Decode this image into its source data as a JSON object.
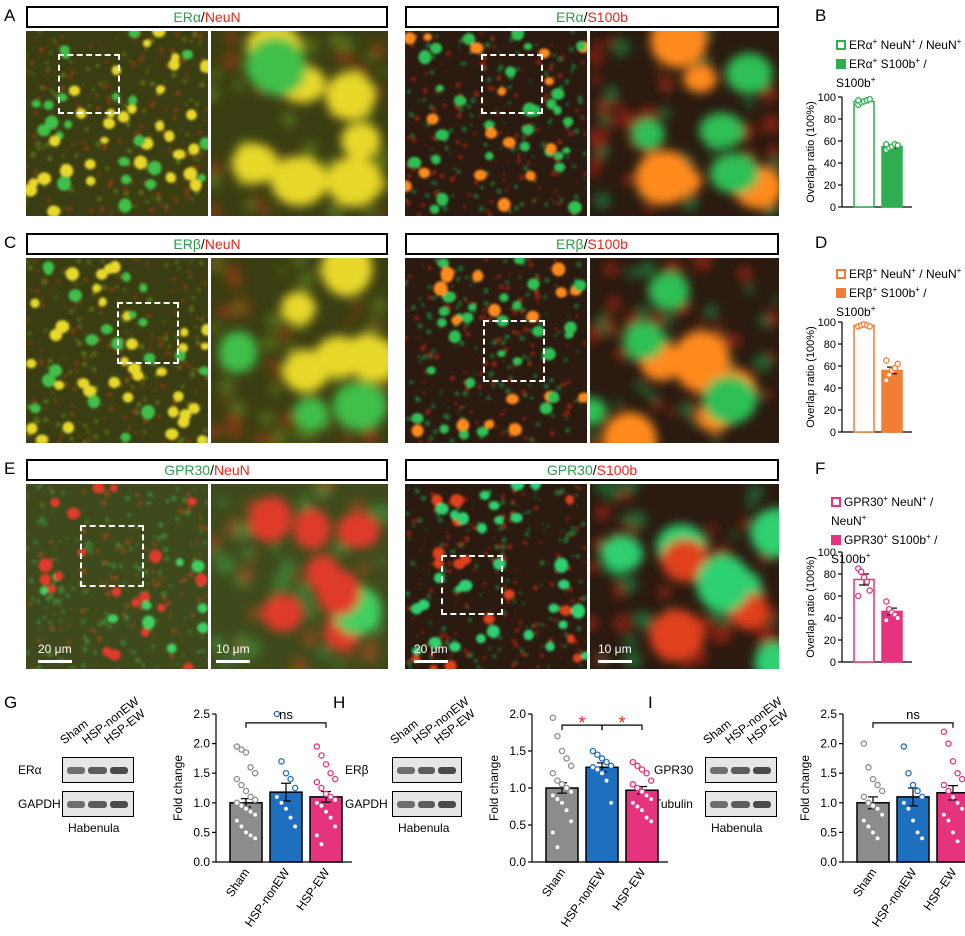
{
  "panels": {
    "A": "A",
    "B": "B",
    "C": "C",
    "D": "D",
    "E": "E",
    "F": "F",
    "G": "G",
    "H": "H",
    "I": "I"
  },
  "rows": [
    {
      "left_title": {
        "marker": "ERα",
        "sep": "/",
        "cell": "NeuN"
      },
      "right_title": {
        "marker": "ERα",
        "sep": "/",
        "cell": "S100b"
      },
      "legend": [
        {
          "text_main": "ERα",
          "sup1": "+",
          "mid": " NeuN",
          "sup2": "+",
          "tail": " / NeuN",
          "sup3": "+",
          "style": "open"
        },
        {
          "text_main": "ERα",
          "sup1": "+",
          "mid": " S100b",
          "sup2": "+",
          "tail": " / S100b",
          "sup3": "+",
          "style": "filled"
        }
      ],
      "color": "#2fae4f",
      "palette": "green"
    },
    {
      "left_title": {
        "marker": "ERβ",
        "sep": "/",
        "cell": "NeuN"
      },
      "right_title": {
        "marker": "ERβ",
        "sep": "/",
        "cell": "S100b"
      },
      "legend": [
        {
          "text_main": "ERβ",
          "sup1": "+",
          "mid": " NeuN",
          "sup2": "+",
          "tail": " / NeuN",
          "sup3": "+",
          "style": "open"
        },
        {
          "text_main": "ERβ",
          "sup1": "+",
          "mid": " S100b",
          "sup2": "+",
          "tail": " / S100b",
          "sup3": "+",
          "style": "filled"
        }
      ],
      "color": "#f07f35",
      "palette": "orange"
    },
    {
      "left_title": {
        "marker": "GPR30",
        "sep": "/",
        "cell": "NeuN"
      },
      "right_title": {
        "marker": "GPR30",
        "sep": "/",
        "cell": "S100b"
      },
      "legend": [
        {
          "text_main": "GPR30",
          "sup1": "+",
          "mid": " NeuN",
          "sup2": "+",
          "tail": " / NeuN",
          "sup3": "+",
          "style": "open"
        },
        {
          "text_main": "GPR30",
          "sup1": "+",
          "mid": " S100b",
          "sup2": "+",
          "tail": " / S100b",
          "sup3": "+",
          "style": "filled"
        }
      ],
      "color": "#e6337e",
      "palette": "pink"
    }
  ],
  "scalebars": {
    "overview": "20 μm",
    "zoom": "10 μm"
  },
  "western": [
    {
      "lanes": [
        "Sham",
        "HSP-nonEW",
        "HSP-EW"
      ],
      "target": "ERα",
      "loading": "GAPDH",
      "region": "Habenula"
    },
    {
      "lanes": [
        "Sham",
        "HSP-nonEW",
        "HSP-EW"
      ],
      "target": "ERβ",
      "loading": "GAPDH",
      "region": "Habenula"
    },
    {
      "lanes": [
        "Sham",
        "HSP-nonEW",
        "HSP-EW"
      ],
      "target": "GPR30",
      "loading": "Tubulin",
      "region": "Habenula"
    }
  ],
  "colors": {
    "sham": "#8c8c8c",
    "nonew": "#1f6fbf",
    "ew": "#e6337e",
    "star": "#e8251a"
  },
  "chart_data": [
    {
      "panel": "B",
      "type": "bar",
      "ylabel": "Overlap ratio (100%)",
      "ylim": [
        0,
        100
      ],
      "yticks": [
        0,
        20,
        40,
        60,
        80,
        100
      ],
      "bars": [
        {
          "mean": 96,
          "sem": 1.2,
          "points": [
            93,
            95,
            96,
            97,
            98,
            97
          ]
        },
        {
          "mean": 55,
          "sem": 1.5,
          "points": [
            52,
            54,
            55,
            57,
            56,
            57
          ]
        }
      ]
    },
    {
      "panel": "D",
      "type": "bar",
      "ylabel": "Overlap ratio (100%)",
      "ylim": [
        0,
        100
      ],
      "yticks": [
        0,
        20,
        40,
        60,
        80,
        100
      ],
      "bars": [
        {
          "mean": 97,
          "sem": 0.8,
          "points": [
            96,
            97,
            98,
            97,
            96
          ]
        },
        {
          "mean": 56,
          "sem": 3.0,
          "points": [
            47,
            52,
            56,
            58,
            62,
            65
          ]
        }
      ]
    },
    {
      "panel": "F",
      "type": "bar",
      "ylabel": "Overlap ratio (100%)",
      "ylim": [
        0,
        100
      ],
      "yticks": [
        0,
        20,
        40,
        60,
        80,
        100
      ],
      "bars": [
        {
          "mean": 75,
          "sem": 5,
          "points": [
            85,
            82,
            77,
            73,
            65,
            60
          ]
        },
        {
          "mean": 46,
          "sem": 3,
          "points": [
            55,
            48,
            45,
            43,
            40,
            38
          ]
        }
      ]
    },
    {
      "panel": "G",
      "type": "bar",
      "ylabel": "Fold change",
      "ylim": [
        0,
        2.5
      ],
      "yticks": [
        0.0,
        0.5,
        1.0,
        1.5,
        2.0,
        2.5
      ],
      "categories": [
        "Sham",
        "HSP-nonEW",
        "HSP-EW"
      ],
      "sig": [
        {
          "from": 0,
          "to": 2,
          "label": "ns",
          "y": 2.35
        }
      ],
      "bars": [
        {
          "mean": 1.0,
          "sem": 0.07,
          "points": [
            1.95,
            1.9,
            1.85,
            1.6,
            1.5,
            1.4,
            1.3,
            1.2,
            1.1,
            1.05,
            1.0,
            0.95,
            0.9,
            0.85,
            0.8,
            0.7,
            0.6,
            0.5,
            0.45,
            0.4
          ]
        },
        {
          "mean": 1.18,
          "sem": 0.15,
          "points": [
            2.5,
            1.7,
            1.5,
            1.4,
            1.25,
            1.1,
            1.0,
            0.9,
            0.75,
            0.6
          ]
        },
        {
          "mean": 1.1,
          "sem": 0.09,
          "points": [
            1.95,
            1.8,
            1.65,
            1.5,
            1.4,
            1.35,
            1.25,
            1.15,
            1.1,
            1.05,
            1.0,
            0.95,
            0.85,
            0.75,
            0.6,
            0.45,
            0.3
          ]
        }
      ]
    },
    {
      "panel": "H",
      "type": "bar",
      "ylabel": "Fold change",
      "ylim": [
        0,
        2.0
      ],
      "yticks": [
        0.0,
        0.5,
        1.0,
        1.5,
        2.0
      ],
      "categories": [
        "Sham",
        "HSP-nonEW",
        "HSP-EW"
      ],
      "sig": [
        {
          "from": 0,
          "to": 1,
          "label": "*",
          "y": 1.85
        },
        {
          "from": 1,
          "to": 2,
          "label": "*",
          "y": 1.85
        }
      ],
      "bars": [
        {
          "mean": 1.0,
          "sem": 0.07,
          "points": [
            1.95,
            1.7,
            1.5,
            1.4,
            1.3,
            1.2,
            1.1,
            1.05,
            1.0,
            0.95,
            0.9,
            0.85,
            0.8,
            0.7,
            0.55,
            0.4,
            0.2
          ]
        },
        {
          "mean": 1.28,
          "sem": 0.06,
          "points": [
            1.5,
            1.45,
            1.4,
            1.35,
            1.3,
            1.28,
            1.25,
            1.2,
            1.1,
            0.8
          ]
        },
        {
          "mean": 0.97,
          "sem": 0.05,
          "points": [
            1.35,
            1.3,
            1.25,
            1.2,
            1.1,
            1.05,
            1.0,
            0.95,
            0.9,
            0.85,
            0.8,
            0.75,
            0.7,
            0.6,
            0.55
          ]
        }
      ]
    },
    {
      "panel": "I",
      "type": "bar",
      "ylabel": "Fold change",
      "ylim": [
        0,
        2.5
      ],
      "yticks": [
        0.0,
        0.5,
        1.0,
        1.5,
        2.0,
        2.5
      ],
      "categories": [
        "Sham",
        "HSP-nonEW",
        "HSP-EW"
      ],
      "sig": [
        {
          "from": 0,
          "to": 2,
          "label": "ns",
          "y": 2.35
        }
      ],
      "bars": [
        {
          "mean": 1.0,
          "sem": 0.1,
          "points": [
            2.0,
            1.6,
            1.4,
            1.3,
            1.2,
            1.1,
            1.0,
            0.95,
            0.9,
            0.8,
            0.7,
            0.6,
            0.5,
            0.4
          ]
        },
        {
          "mean": 1.1,
          "sem": 0.15,
          "points": [
            1.95,
            1.5,
            1.3,
            1.2,
            1.1,
            1.0,
            0.9,
            0.7,
            0.5,
            0.4
          ]
        },
        {
          "mean": 1.17,
          "sem": 0.12,
          "points": [
            2.2,
            2.0,
            1.7,
            1.5,
            1.4,
            1.3,
            1.2,
            1.1,
            1.0,
            0.9,
            0.8,
            0.7,
            0.5,
            0.35
          ]
        }
      ]
    }
  ]
}
